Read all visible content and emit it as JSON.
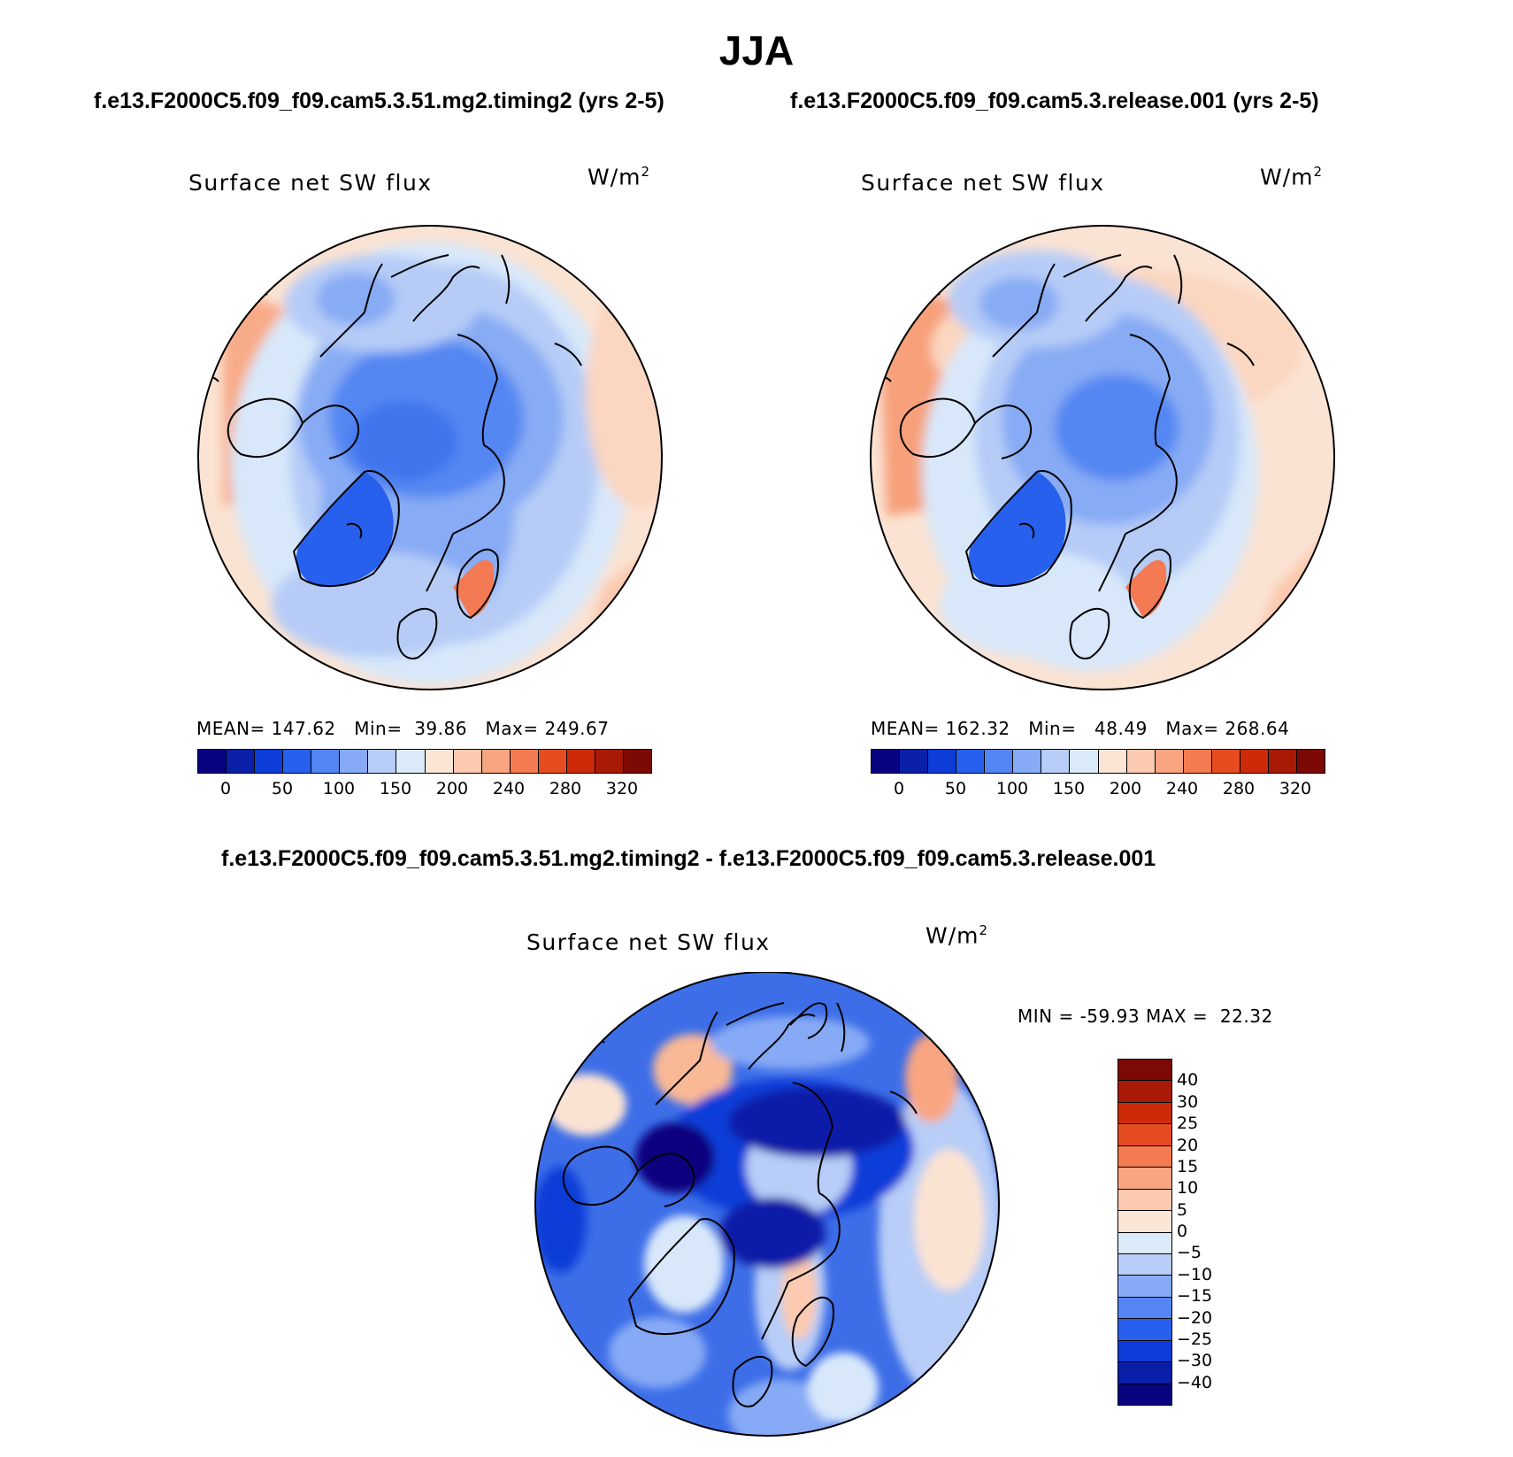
{
  "figure": {
    "season": "JJA",
    "case_a_label": "f.e13.F2000C5.f09_f09.cam5.3.51.mg2.timing2 (yrs 2-5)",
    "case_b_label": "f.e13.F2000C5.f09_f09.cam5.3.release.001 (yrs 2-5)",
    "diff_label": "f.e13.F2000C5.f09_f09.cam5.3.51.mg2.timing2 - f.e13.F2000C5.f09_f09.cam5.3.release.001"
  },
  "panels": [
    {
      "title": "Surface net SW flux",
      "units": "W/m",
      "units_sup": "2",
      "stats": {
        "mean_label": "MEAN=",
        "mean": "147.62",
        "min_label": "Min=",
        "min": "39.86",
        "max_label": "Max=",
        "max": "249.67"
      },
      "map_fields": {
        "background": "#fadccc",
        "regions": [
          "warm-periphery",
          "cool-arctic-ocean",
          "greenland-low"
        ]
      }
    },
    {
      "title": "Surface net SW flux",
      "units": "W/m",
      "units_sup": "2",
      "stats": {
        "mean_label": "MEAN=",
        "mean": "162.32",
        "min_label": "Min=",
        "min": "48.49",
        "max_label": "Max=",
        "max": "268.64"
      },
      "map_fields": {
        "background": "#fbe3d3",
        "regions": [
          "warm-periphery",
          "cool-arctic-ocean",
          "greenland-low"
        ]
      }
    },
    {
      "title": "Surface net SW flux",
      "units": "W/m",
      "units_sup": "2",
      "stats": {
        "min_label": "MIN =",
        "min": "-59.93",
        "max_label": "MAX =",
        "max": "22.32"
      },
      "map_fields": {
        "background": "#3d6ee8",
        "regions": [
          "strong-negative-arctic",
          "mixed-periphery"
        ]
      }
    }
  ],
  "colorbars": {
    "abs": {
      "colors": [
        "#08037f",
        "#0a1fa8",
        "#0d3cd8",
        "#2760ec",
        "#5386f2",
        "#86aaf5",
        "#b8cdf7",
        "#daeaf9",
        "#fbe5d5",
        "#fbcab0",
        "#f9a582",
        "#f47a4f",
        "#e54d20",
        "#cc2a08",
        "#a91a06",
        "#7c0903"
      ],
      "ticks": [
        "0",
        "50",
        "100",
        "150",
        "200",
        "240",
        "280",
        "320"
      ]
    },
    "diff": {
      "colors": [
        "#7c0903",
        "#a91a06",
        "#cc2a08",
        "#e54d20",
        "#f47a4f",
        "#f9a582",
        "#fbcab0",
        "#fbe5d5",
        "#daeaf9",
        "#b8cdf7",
        "#86aaf5",
        "#5386f2",
        "#2760ec",
        "#0d3cd8",
        "#0a1fa8",
        "#08037f"
      ],
      "ticks": [
        "40",
        "30",
        "25",
        "20",
        "15",
        "10",
        "5",
        "0",
        "−5",
        "−10",
        "−15",
        "−20",
        "−25",
        "−30",
        "−40"
      ]
    }
  }
}
